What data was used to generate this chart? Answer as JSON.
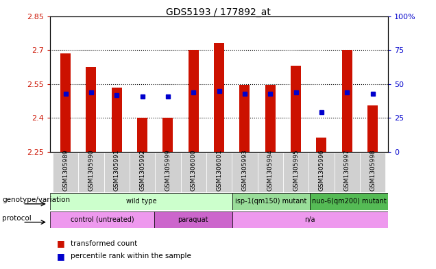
{
  "title": "GDS5193 / 177892_at",
  "samples": [
    "GSM1305989",
    "GSM1305990",
    "GSM1305991",
    "GSM1305992",
    "GSM1305999",
    "GSM1306000",
    "GSM1306001",
    "GSM1305993",
    "GSM1305994",
    "GSM1305995",
    "GSM1305996",
    "GSM1305997",
    "GSM1305998"
  ],
  "transformed_count": [
    2.685,
    2.625,
    2.535,
    2.4,
    2.4,
    2.7,
    2.73,
    2.545,
    2.545,
    2.63,
    2.315,
    2.7,
    2.455
  ],
  "percentile_rank": [
    43,
    44,
    42,
    41,
    41,
    44,
    45,
    43,
    43,
    44,
    29,
    44,
    43
  ],
  "y_min": 2.25,
  "y_max": 2.85,
  "y_ticks": [
    2.25,
    2.4,
    2.55,
    2.7,
    2.85
  ],
  "y_tick_labels": [
    "2.25",
    "2.4",
    "2.55",
    "2.7",
    "2.85"
  ],
  "y2_ticks": [
    0,
    25,
    50,
    75,
    100
  ],
  "y2_tick_labels": [
    "0",
    "25",
    "50",
    "75",
    "100%"
  ],
  "bar_color": "#cc1100",
  "blue_color": "#0000cc",
  "plot_bg": "#ffffff",
  "genotype_groups": [
    {
      "label": "wild type",
      "start": 0,
      "end": 7,
      "color": "#ccffcc"
    },
    {
      "label": "isp-1(qm150) mutant",
      "start": 7,
      "end": 10,
      "color": "#99dd99"
    },
    {
      "label": "nuo-6(qm200) mutant",
      "start": 10,
      "end": 13,
      "color": "#55bb55"
    }
  ],
  "protocol_groups": [
    {
      "label": "control (untreated)",
      "start": 0,
      "end": 4,
      "color": "#ee99ee"
    },
    {
      "label": "paraquat",
      "start": 4,
      "end": 7,
      "color": "#cc66cc"
    },
    {
      "label": "n/a",
      "start": 7,
      "end": 13,
      "color": "#ee99ee"
    }
  ],
  "genotype_label": "genotype/variation",
  "protocol_label": "protocol",
  "legend1": "transformed count",
  "legend2": "percentile rank within the sample"
}
